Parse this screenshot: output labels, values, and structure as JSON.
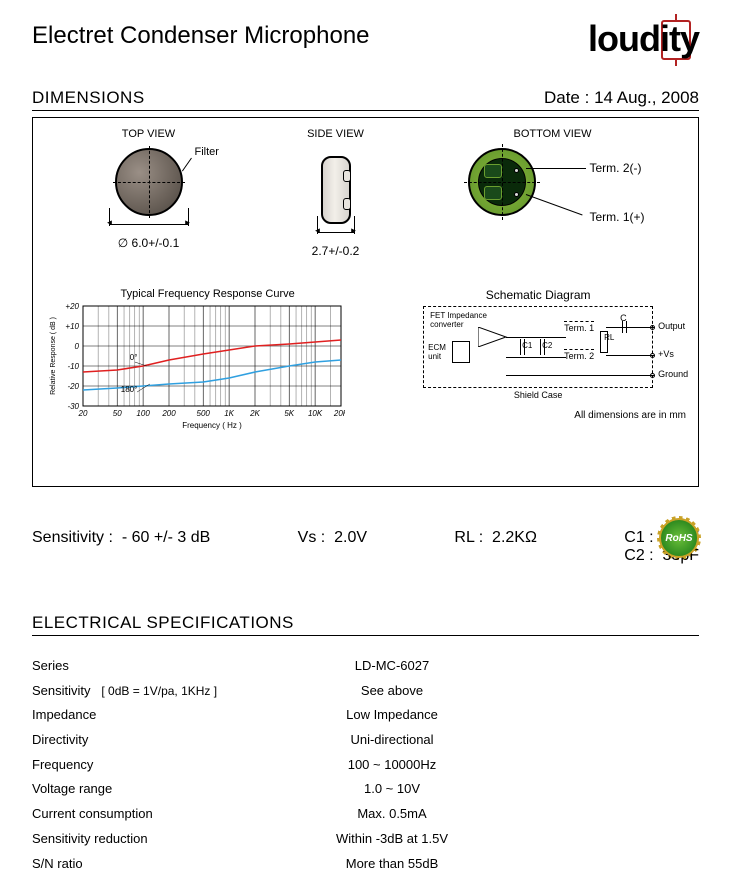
{
  "title": "Electret Condenser Microphone",
  "logo_text": "loudity",
  "section_dimensions": "DIMENSIONS",
  "date_prefix": "Date : ",
  "date": "14 Aug., 2008",
  "views": {
    "top": "TOP VIEW",
    "side": "SIDE VIEW",
    "bottom": "BOTTOM VIEW",
    "filter": "Filter",
    "diameter": "∅ 6.0+/-0.1",
    "thickness": "2.7+/-0.2",
    "term2": "Term. 2(-)",
    "term1": "Term. 1(+)"
  },
  "chart": {
    "title": "Typical Frequency Response Curve",
    "xlabel": "Frequency ( Hz )",
    "ylabel": "Relative Response ( dB )",
    "yticks": [
      "+20",
      "+10",
      "0",
      "-10",
      "-20",
      "-30"
    ],
    "xticks": [
      "20",
      "50",
      "100",
      "200",
      "500",
      "1K",
      "2K",
      "5K",
      "10K",
      "20K"
    ],
    "ylim": [
      -30,
      20
    ],
    "xrange_log": [
      20,
      20000
    ],
    "annot0": "0°",
    "annot180": "180°",
    "red_color": "#e02020",
    "blue_color": "#30a0e0",
    "grid_color": "#000000",
    "red_series_db": [
      -13,
      -12,
      -10,
      -7,
      -4,
      -2,
      0,
      1,
      2,
      3
    ],
    "blue_series_db": [
      -22,
      -21,
      -20,
      -19,
      -18,
      -16,
      -13,
      -10,
      -8,
      -7
    ]
  },
  "schematic": {
    "title": "Schematic Diagram",
    "fet": "FET Impedance\nconverter",
    "ecm": "ECM\nunit",
    "c1": "C1",
    "c2": "C2",
    "rl": "RL",
    "c": "C",
    "t1": "Term. 1",
    "t2": "Term. 2",
    "out": "Output",
    "vs": "+Vs",
    "gnd": "Ground",
    "shield": "Shield Case"
  },
  "dims_note": "All dimensions are in mm",
  "params": {
    "sens_label": "Sensitivity :",
    "sens_val": "- 60 +/- 3 dB",
    "vs_label": "Vs :",
    "vs_val": "2.0V",
    "rl_label": "RL :",
    "rl_val": "2.2KΩ",
    "c1_label": "C1 :",
    "c1_val": "10pF",
    "c2_label": "C2 :",
    "c2_val": "33pF"
  },
  "rohs": "RoHS",
  "especs_header": "ELECTRICAL SPECIFICATIONS",
  "specs": [
    {
      "label": "Series",
      "note": "",
      "value": "LD-MC-6027"
    },
    {
      "label": "Sensitivity",
      "note": "[ 0dB = 1V/pa, 1KHz ]",
      "value": "See above"
    },
    {
      "label": "Impedance",
      "note": "",
      "value": "Low Impedance"
    },
    {
      "label": "Directivity",
      "note": "",
      "value": "Uni-directional"
    },
    {
      "label": "Frequency",
      "note": "",
      "value": "100 ~ 10000Hz"
    },
    {
      "label": "Voltage range",
      "note": "",
      "value": "1.0 ~ 10V"
    },
    {
      "label": "Current consumption",
      "note": "",
      "value": "Max. 0.5mA"
    },
    {
      "label": "Sensitivity reduction",
      "note": "",
      "value": "Within -3dB at 1.5V"
    },
    {
      "label": "S/N ratio",
      "note": "",
      "value": "More than 55dB"
    }
  ]
}
